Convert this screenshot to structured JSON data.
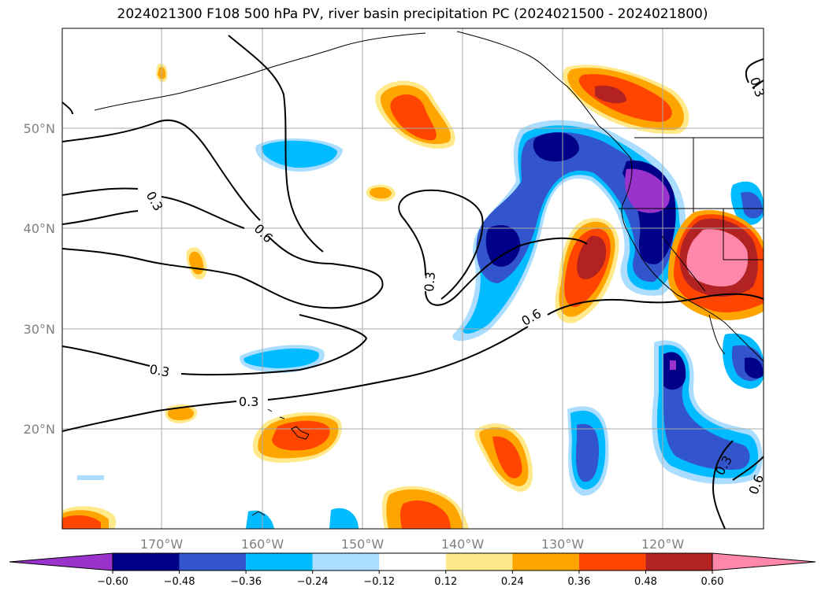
{
  "title": "2024021300 F108 500 hPa PV, river basin precipitation PC (2024021500 - 2024021800)",
  "map": {
    "lat_labels": [
      "50°N",
      "40°N",
      "30°N",
      "20°N"
    ],
    "lon_labels": [
      "170°W",
      "160°W",
      "150°W",
      "140°W",
      "130°W",
      "120°W"
    ],
    "contour_labels": [
      "0.3",
      "0.6",
      "0.3",
      "0.6",
      "0.3",
      "0.3",
      "0.3",
      "0.6",
      "0.3",
      "0.6"
    ]
  },
  "colorbar": {
    "ticks": [
      "−0.60",
      "−0.48",
      "−0.36",
      "−0.24",
      "−0.12",
      "0.12",
      "0.24",
      "0.36",
      "0.48",
      "0.60"
    ],
    "colors": [
      "#9933cc",
      "#000088",
      "#3355cc",
      "#00bbff",
      "#aaddff",
      "#ffffff",
      "#ffe98a",
      "#ffa500",
      "#ff4500",
      "#b22222",
      "#ff88aa"
    ]
  },
  "chart_data": {
    "type": "heatmap",
    "title": "2024021300 F108 500 hPa PV, river basin precipitation PC (2024021500 - 2024021800)",
    "lat_range": [
      10,
      60
    ],
    "lon_range": [
      -180,
      -110
    ],
    "contour_levels": [
      0.3,
      0.6
    ],
    "shading_levels": [
      -0.6,
      -0.48,
      -0.36,
      -0.24,
      -0.12,
      0.12,
      0.24,
      0.36,
      0.48,
      0.6
    ]
  }
}
